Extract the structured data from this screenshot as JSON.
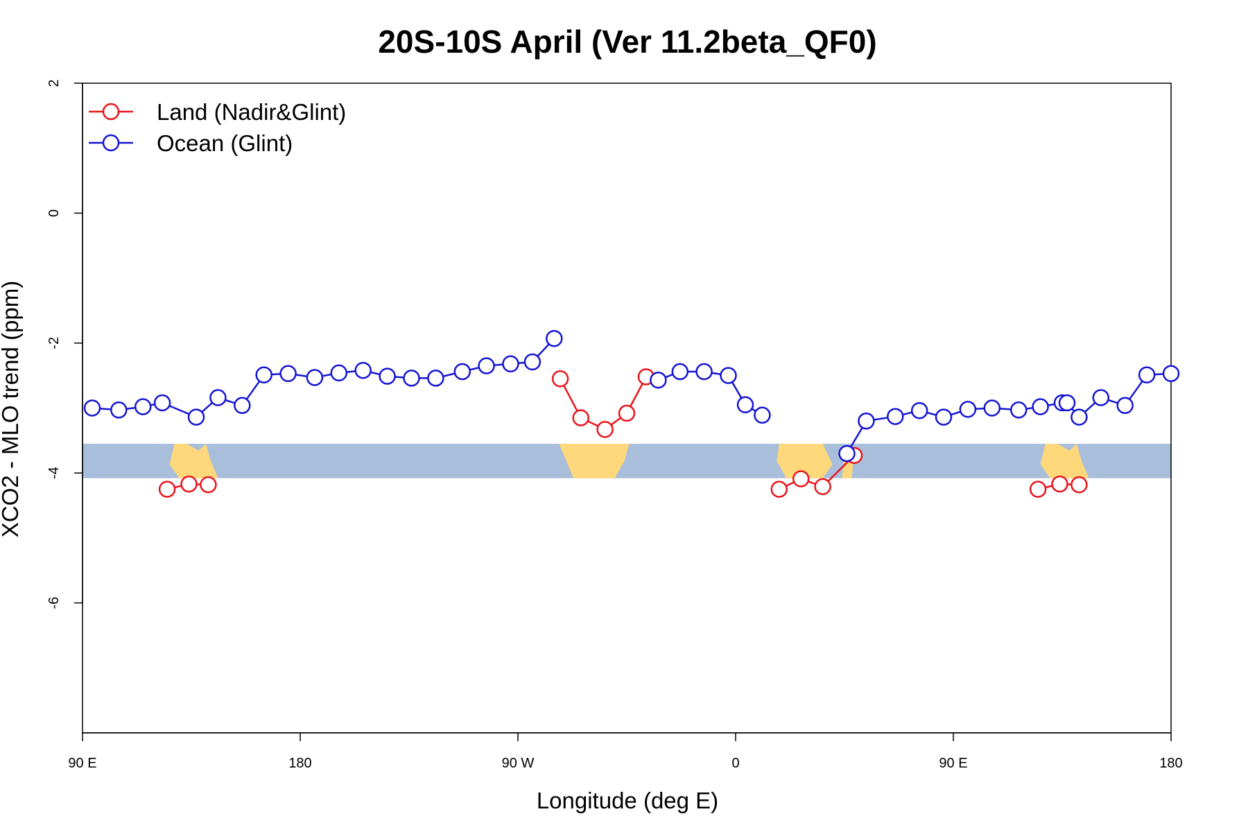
{
  "chart_data": {
    "type": "line",
    "title": "20S-10S April (Ver 11.2beta_QF0)",
    "xlabel": "Longitude (deg E)",
    "ylabel": "XCO2 - MLO trend (ppm)",
    "xlim": [
      90,
      540
    ],
    "ylim": [
      -8,
      2
    ],
    "x_ticks": [
      {
        "value": 90,
        "label": "90 E"
      },
      {
        "value": 180,
        "label": "180"
      },
      {
        "value": 270,
        "label": "90 W"
      },
      {
        "value": 360,
        "label": "0"
      },
      {
        "value": 450,
        "label": "90 E"
      },
      {
        "value": 540,
        "label": "180"
      }
    ],
    "y_ticks": [
      {
        "value": 2,
        "label": "2"
      },
      {
        "value": 0,
        "label": "0"
      },
      {
        "value": -2,
        "label": "-2"
      },
      {
        "value": -4,
        "label": "-4"
      },
      {
        "value": -6,
        "label": "-6"
      }
    ],
    "legend_position": "top-left",
    "map_strip": {
      "y_top": -3.55,
      "y_bottom": -4.08,
      "ocean_color": "#a9bedb",
      "land_color": "#fed87a"
    },
    "series": [
      {
        "name": "Land (Nadir&Glint)",
        "color": "#e8141c",
        "segments": [
          [
            [
              125,
              -4.25
            ],
            [
              134,
              -4.17
            ],
            [
              142,
              -4.18
            ]
          ],
          [
            [
              287.5,
              -2.55
            ],
            [
              296,
              -3.15
            ],
            [
              306,
              -3.33
            ],
            [
              315,
              -3.08
            ],
            [
              323,
              -2.52
            ]
          ],
          [
            [
              378,
              -4.25
            ],
            [
              387,
              -4.09
            ],
            [
              396,
              -4.21
            ],
            [
              409,
              -3.73
            ]
          ],
          [
            [
              485,
              -4.25
            ],
            [
              494,
              -4.17
            ],
            [
              502,
              -4.18
            ]
          ]
        ]
      },
      {
        "name": "Ocean (Glint)",
        "color": "#1414d2",
        "segments": [
          [
            [
              94,
              -3.0
            ],
            [
              105,
              -3.03
            ],
            [
              115,
              -2.98
            ],
            [
              123,
              -2.92
            ],
            [
              137,
              -3.14
            ],
            [
              146,
              -2.84
            ],
            [
              156,
              -2.96
            ],
            [
              165,
              -2.49
            ],
            [
              175,
              -2.47
            ],
            [
              186,
              -2.53
            ],
            [
              196,
              -2.46
            ],
            [
              206,
              -2.42
            ],
            [
              216,
              -2.51
            ],
            [
              226,
              -2.54
            ],
            [
              236,
              -2.54
            ],
            [
              247,
              -2.44
            ],
            [
              257,
              -2.35
            ],
            [
              267,
              -2.32
            ],
            [
              276,
              -2.29
            ],
            [
              285,
              -1.93
            ]
          ],
          [
            [
              328,
              -2.57
            ],
            [
              337,
              -2.44
            ],
            [
              347,
              -2.44
            ],
            [
              357,
              -2.5
            ],
            [
              364,
              -2.95
            ],
            [
              371,
              -3.11
            ]
          ],
          [
            [
              406,
              -3.7
            ],
            [
              414,
              -3.2
            ],
            [
              426,
              -3.13
            ],
            [
              436,
              -3.04
            ],
            [
              446,
              -3.14
            ],
            [
              456,
              -3.02
            ],
            [
              466,
              -3.0
            ],
            [
              477,
              -3.03
            ],
            [
              486,
              -2.98
            ],
            [
              495,
              -2.92
            ],
            [
              497,
              -2.92
            ],
            [
              502,
              -3.14
            ],
            [
              511,
              -2.84
            ],
            [
              521,
              -2.96
            ],
            [
              530,
              -2.49
            ],
            [
              540,
              -2.47
            ]
          ]
        ]
      }
    ]
  }
}
